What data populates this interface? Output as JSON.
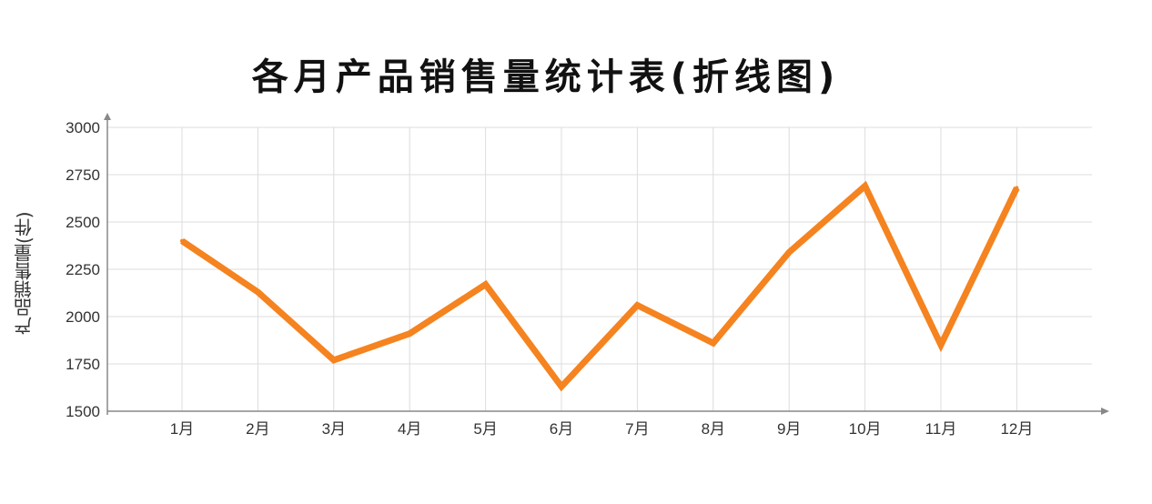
{
  "chart_data": {
    "type": "line",
    "title": "各月产品销售量统计表(折线图)",
    "xlabel": "",
    "ylabel": "产品销售量(件)",
    "categories": [
      "1月",
      "2月",
      "3月",
      "4月",
      "5月",
      "6月",
      "7月",
      "8月",
      "9月",
      "10月",
      "11月",
      "12月"
    ],
    "series": [
      {
        "values": [
          2400,
          2130,
          1770,
          1910,
          2170,
          1630,
          2060,
          1860,
          2340,
          2690,
          1850,
          2680
        ]
      }
    ],
    "ylim": [
      1500,
      3000
    ],
    "yticks": [
      "1500",
      "1750",
      "2000",
      "2250",
      "2500",
      "2750",
      "3000"
    ],
    "grid": true,
    "colors": {
      "line": "#F5831F",
      "grid": "#dcdcdc",
      "axis": "#888888"
    }
  }
}
